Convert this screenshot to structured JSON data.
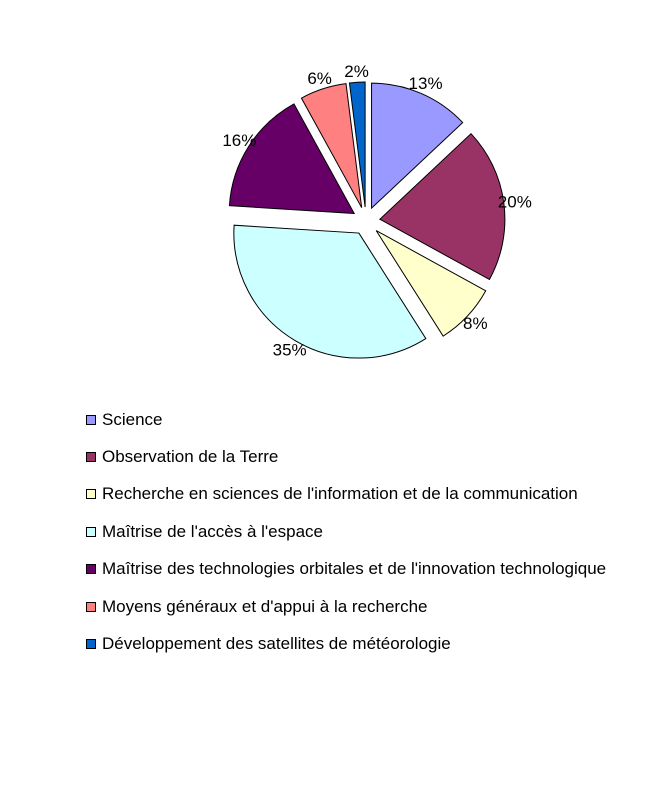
{
  "chart_data": {
    "type": "pie",
    "title": "",
    "legend_position": "bottom",
    "slices": [
      {
        "label": "Science",
        "value": 13,
        "display": "13%",
        "color": "#9999FF",
        "exploded": true
      },
      {
        "label": "Observation de la Terre",
        "value": 20,
        "display": "20%",
        "color": "#993366",
        "exploded": true
      },
      {
        "label": "Recherche en sciences de l'information et de la communication",
        "value": 8,
        "display": "8%",
        "color": "#FFFFCC",
        "exploded": true
      },
      {
        "label": "Maîtrise de l'accès à l'espace",
        "value": 35,
        "display": "35%",
        "color": "#CCFFFF",
        "exploded": true
      },
      {
        "label": "Maîtrise des technologies orbitales et de l'innovation technologique",
        "value": 16,
        "display": "16%",
        "color": "#660066",
        "exploded": true
      },
      {
        "label": "Moyens généraux et d'appui à la recherche",
        "value": 6,
        "display": "6%",
        "color": "#FF8080",
        "exploded": true
      },
      {
        "label": "Développement des satellites de météorologie",
        "value": 2,
        "display": "2%",
        "color": "#0066CC",
        "exploded": true
      }
    ]
  }
}
